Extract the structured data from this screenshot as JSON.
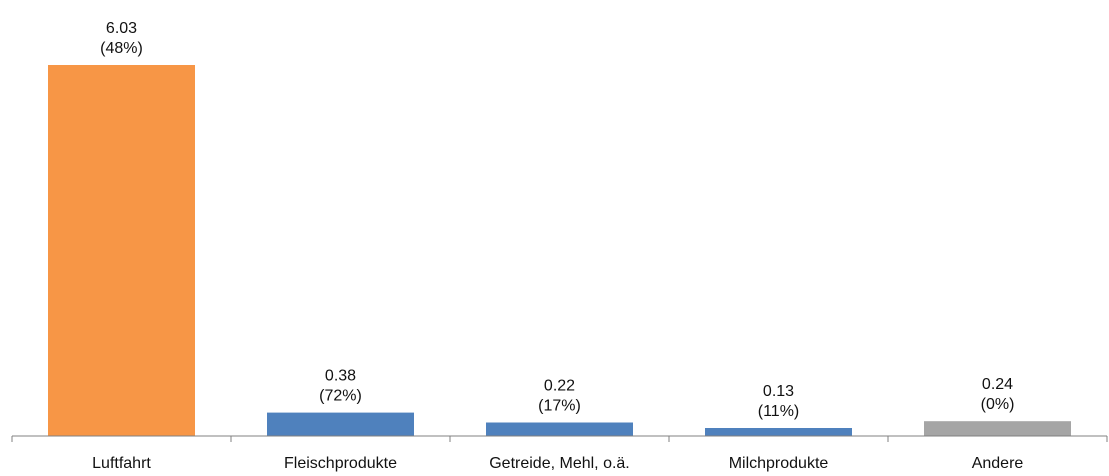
{
  "chart_data": {
    "type": "bar",
    "categories": [
      "Luftfahrt",
      "Fleischprodukte",
      "Getreide, Mehl, o.ä.",
      "Milchprodukte",
      "Andere"
    ],
    "values": [
      6.03,
      0.38,
      0.22,
      0.13,
      0.24
    ],
    "value_labels": [
      "6.03",
      "0.38",
      "0.22",
      "0.13",
      "0.24"
    ],
    "percent_labels": [
      "(48%)",
      "(72%)",
      "(17%)",
      "(11%)",
      "(0%)"
    ],
    "bar_colors": [
      "#F79646",
      "#4F81BD",
      "#4F81BD",
      "#4F81BD",
      "#A5A5A5"
    ],
    "axis_color": "#808080",
    "ylim": [
      0,
      6.03
    ],
    "grid": false,
    "legend": "none"
  }
}
